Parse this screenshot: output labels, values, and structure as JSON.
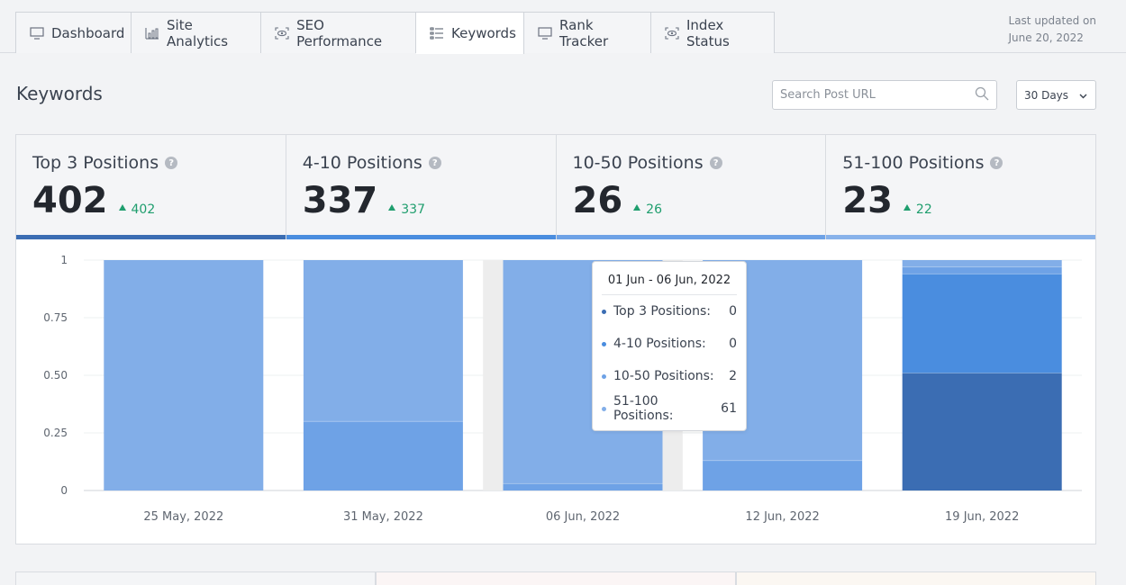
{
  "tabs": [
    {
      "label": "Dashboard",
      "icon": "monitor-icon"
    },
    {
      "label": "Site Analytics",
      "icon": "analytics-icon"
    },
    {
      "label": "SEO Performance",
      "icon": "eye-icon"
    },
    {
      "label": "Keywords",
      "icon": "list-icon",
      "active": true
    },
    {
      "label": "Rank Tracker",
      "icon": "monitor-icon"
    },
    {
      "label": "Index Status",
      "icon": "eye-icon"
    }
  ],
  "last_updated": {
    "label": "Last updated on",
    "date": "June 20, 2022"
  },
  "page_title": "Keywords",
  "search": {
    "placeholder": "Search Post URL"
  },
  "range_select": {
    "selected": "30 Days"
  },
  "stats": [
    {
      "label": "Top 3 Positions",
      "value": "402",
      "delta": "402",
      "color": "#3b6db3"
    },
    {
      "label": "4-10 Positions",
      "value": "337",
      "delta": "337",
      "color": "#4a8ddf"
    },
    {
      "label": "10-50 Positions",
      "value": "26",
      "delta": "26",
      "color": "#6ea2e6"
    },
    {
      "label": "51-100 Positions",
      "value": "23",
      "delta": "22",
      "color": "#88b2ea"
    }
  ],
  "chart_data": {
    "type": "bar",
    "stacked": true,
    "categories": [
      "25 May, 2022",
      "31 May, 2022",
      "06 Jun, 2022",
      "12 Jun, 2022",
      "19 Jun, 2022"
    ],
    "series": [
      {
        "name": "Top 3 Positions",
        "color": "#3b6db3",
        "values": [
          0,
          0,
          0,
          0,
          0.51
        ]
      },
      {
        "name": "4-10 Positions",
        "color": "#4a8ddf",
        "values": [
          0,
          0,
          0,
          0,
          0.43
        ]
      },
      {
        "name": "10-50 Positions",
        "color": "#6ea2e6",
        "values": [
          0,
          0.3,
          0.03,
          0.13,
          0.03
        ]
      },
      {
        "name": "51-100 Positions",
        "color": "#82aee8",
        "values": [
          1,
          0.7,
          0.97,
          0.87,
          0.03
        ]
      }
    ],
    "y_ticks": [
      "0",
      "0.25",
      "0.50",
      "0.75",
      "1"
    ],
    "ylim": [
      0,
      1
    ],
    "grid": true,
    "hover_index": 2
  },
  "tooltip": {
    "title": "01 Jun - 06 Jun, 2022",
    "rows": [
      {
        "name": "Top 3 Positions:",
        "value": "0",
        "color": "#3b6db3"
      },
      {
        "name": "4-10 Positions:",
        "value": "0",
        "color": "#4a8ddf"
      },
      {
        "name": "10-50 Positions:",
        "value": "2",
        "color": "#6ea2e6"
      },
      {
        "name": "51-100 Positions:",
        "value": "61",
        "color": "#82aee8"
      }
    ]
  }
}
